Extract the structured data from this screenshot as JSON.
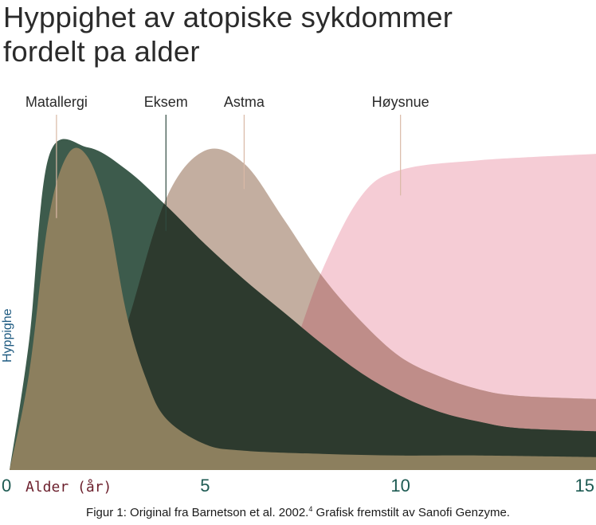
{
  "title": {
    "line1": "Hyppighet av atopiske sykdommer",
    "line2": "fordelt pa alder"
  },
  "caption": {
    "before": "Figur 1: Original fra Barnetson et al. 2002.",
    "sup": "4",
    "after": " Grafisk fremstilt av Sanofi Genzyme."
  },
  "chart_data": {
    "type": "area",
    "title": "Hyppighet av atopiske sykdommer fordelt pa alder",
    "xlabel": "Alder (år)",
    "ylabel": "Hyppighe",
    "xlim": [
      0,
      15
    ],
    "ylim": [
      0,
      100
    ],
    "xticks": [
      {
        "value": 0,
        "label": "0"
      },
      {
        "value": 5,
        "label": "5"
      },
      {
        "value": 10,
        "label": "10"
      },
      {
        "value": 15,
        "label": "15"
      }
    ],
    "grid": false,
    "legend_placement": "top, labels above curves",
    "series": [
      {
        "name": "Høysnue",
        "color": "#f5ccd5",
        "points": [
          [
            0,
            0
          ],
          [
            2,
            1
          ],
          [
            4,
            3
          ],
          [
            5,
            6
          ],
          [
            6,
            12
          ],
          [
            7,
            30
          ],
          [
            8,
            62
          ],
          [
            9,
            85
          ],
          [
            10,
            93
          ],
          [
            12,
            96
          ],
          [
            15,
            98
          ]
        ]
      },
      {
        "name": "Astma",
        "color": "#c3aea0",
        "points": [
          [
            0,
            0
          ],
          [
            1,
            2
          ],
          [
            2,
            8
          ],
          [
            3,
            45
          ],
          [
            4,
            84
          ],
          [
            5,
            99
          ],
          [
            6,
            95
          ],
          [
            7,
            78
          ],
          [
            8,
            60
          ],
          [
            9,
            46
          ],
          [
            10,
            35
          ],
          [
            11,
            29
          ],
          [
            12,
            25
          ],
          [
            13,
            23
          ],
          [
            15,
            22
          ]
        ]
      },
      {
        "name": "Eksem",
        "color": "#3d5b4c",
        "points": [
          [
            0,
            0
          ],
          [
            0.5,
            40
          ],
          [
            1,
            97
          ],
          [
            2,
            100
          ],
          [
            3,
            93
          ],
          [
            4,
            82
          ],
          [
            5,
            70
          ],
          [
            6,
            59
          ],
          [
            7,
            49
          ],
          [
            8,
            39
          ],
          [
            9,
            30
          ],
          [
            10,
            23
          ],
          [
            11,
            18
          ],
          [
            12,
            15
          ],
          [
            13,
            13
          ],
          [
            15,
            12
          ]
        ]
      },
      {
        "name": "Matallergi",
        "color": "#8c7f5e",
        "points": [
          [
            0,
            0
          ],
          [
            0.5,
            30
          ],
          [
            1,
            78
          ],
          [
            1.5,
            98
          ],
          [
            2,
            97
          ],
          [
            2.5,
            80
          ],
          [
            3,
            48
          ],
          [
            3.5,
            28
          ],
          [
            4,
            16
          ],
          [
            5,
            8
          ],
          [
            6,
            6
          ],
          [
            8,
            5
          ],
          [
            10,
            4.5
          ],
          [
            12,
            4.5
          ],
          [
            15,
            4
          ]
        ]
      }
    ],
    "overlap_colors": {
      "eksem_astma": "#2d3a2e",
      "astma_hoysnue": "#bf8d89"
    },
    "legend_anchors": [
      {
        "name": "Matallergi",
        "x": 1.2
      },
      {
        "name": "Eksem",
        "x": 4.0
      },
      {
        "name": "Astma",
        "x": 6.0
      },
      {
        "name": "Høysnue",
        "x": 10.0
      }
    ]
  }
}
